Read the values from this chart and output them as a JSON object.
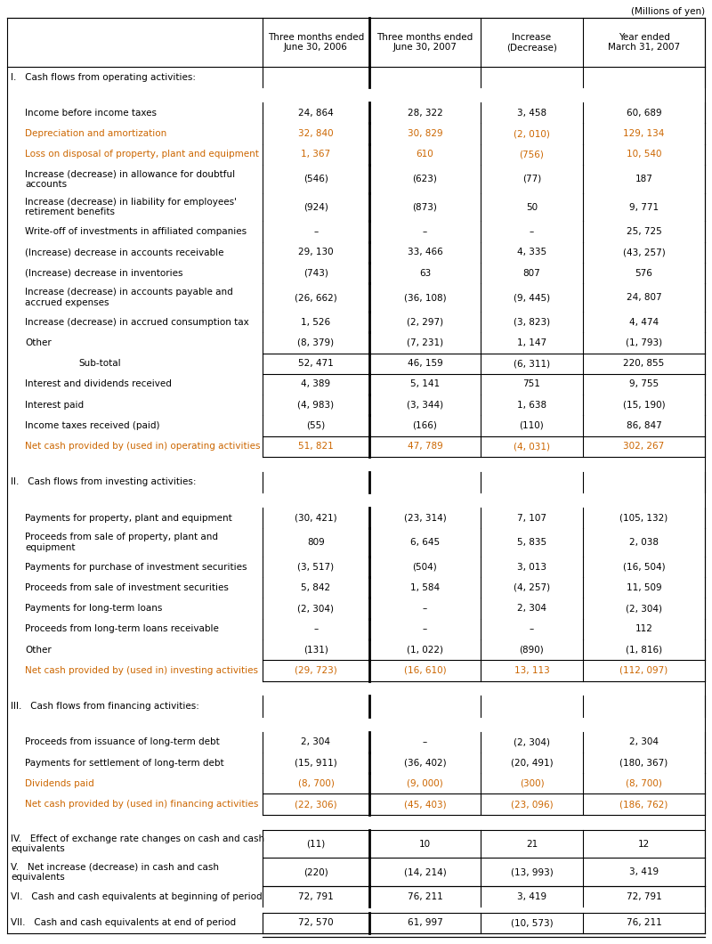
{
  "title_note": "(Millions of yen)",
  "col_headers": [
    "Three months ended\nJune 30, 2006",
    "Three months ended\nJune 30, 2007",
    "Increase\n(Decrease)",
    "Year ended\nMarch 31, 2007"
  ],
  "rows": [
    {
      "label": "I.   Cash flows from operating activities:",
      "vals": [
        "",
        "",
        "",
        ""
      ],
      "indent": 0,
      "style": "section",
      "orange": false
    },
    {
      "label": "",
      "vals": [
        "",
        "",
        "",
        ""
      ],
      "indent": 0,
      "style": "spacer",
      "orange": false
    },
    {
      "label": "Income before income taxes",
      "vals": [
        "24, 864",
        "28, 322",
        "3, 458",
        "60, 689"
      ],
      "indent": 1,
      "style": "normal",
      "orange": false
    },
    {
      "label": "Depreciation and amortization",
      "vals": [
        "32, 840",
        "30, 829",
        "(2, 010)",
        "129, 134"
      ],
      "indent": 1,
      "style": "normal",
      "orange": true
    },
    {
      "label": "Loss on disposal of property, plant and equipment",
      "vals": [
        "1, 367",
        "610",
        "(756)",
        "10, 540"
      ],
      "indent": 1,
      "style": "normal",
      "orange": true
    },
    {
      "label": "Increase (decrease) in allowance for doubtful\naccounts",
      "vals": [
        "(546)",
        "(623)",
        "(77)",
        "187"
      ],
      "indent": 1,
      "style": "normal2",
      "orange": false
    },
    {
      "label": "Increase (decrease) in liability for employees'\nretirement benefits",
      "vals": [
        "(924)",
        "(873)",
        "50",
        "9, 771"
      ],
      "indent": 1,
      "style": "normal2",
      "orange": false
    },
    {
      "label": "Write-off of investments in affiliated companies",
      "vals": [
        "–",
        "–",
        "–",
        "25, 725"
      ],
      "indent": 1,
      "style": "normal",
      "orange": false
    },
    {
      "label": "(Increase) decrease in accounts receivable",
      "vals": [
        "29, 130",
        "33, 466",
        "4, 335",
        "(43, 257)"
      ],
      "indent": 1,
      "style": "normal",
      "orange": false
    },
    {
      "label": "(Increase) decrease in inventories",
      "vals": [
        "(743)",
        "63",
        "807",
        "576"
      ],
      "indent": 1,
      "style": "normal",
      "orange": false
    },
    {
      "label": "Increase (decrease) in accounts payable and\naccrued expenses",
      "vals": [
        "(26, 662)",
        "(36, 108)",
        "(9, 445)",
        "24, 807"
      ],
      "indent": 1,
      "style": "normal2",
      "orange": false
    },
    {
      "label": "Increase (decrease) in accrued consumption tax",
      "vals": [
        "1, 526",
        "(2, 297)",
        "(3, 823)",
        "4, 474"
      ],
      "indent": 1,
      "style": "normal",
      "orange": false
    },
    {
      "label": "Other",
      "vals": [
        "(8, 379)",
        "(7, 231)",
        "1, 147",
        "(1, 793)"
      ],
      "indent": 1,
      "style": "normal",
      "orange": false
    },
    {
      "label": "Sub-total",
      "vals": [
        "52, 471",
        "46, 159",
        "(6, 311)",
        "220, 855"
      ],
      "indent": 2,
      "style": "subtotal",
      "orange": false
    },
    {
      "label": "Interest and dividends received",
      "vals": [
        "4, 389",
        "5, 141",
        "751",
        "9, 755"
      ],
      "indent": 1,
      "style": "normal",
      "orange": false
    },
    {
      "label": "Interest paid",
      "vals": [
        "(4, 983)",
        "(3, 344)",
        "1, 638",
        "(15, 190)"
      ],
      "indent": 1,
      "style": "normal",
      "orange": false
    },
    {
      "label": "Income taxes received (paid)",
      "vals": [
        "(55)",
        "(166)",
        "(110)",
        "86, 847"
      ],
      "indent": 1,
      "style": "normal",
      "orange": false
    },
    {
      "label": "Net cash provided by (used in) operating activities",
      "vals": [
        "51, 821",
        "47, 789",
        "(4, 031)",
        "302, 267"
      ],
      "indent": 1,
      "style": "total",
      "orange": true
    },
    {
      "label": "",
      "vals": [
        "",
        "",
        "",
        ""
      ],
      "indent": 0,
      "style": "spacer",
      "orange": false
    },
    {
      "label": "II.   Cash flows from investing activities:",
      "vals": [
        "",
        "",
        "",
        ""
      ],
      "indent": 0,
      "style": "section",
      "orange": false
    },
    {
      "label": "",
      "vals": [
        "",
        "",
        "",
        ""
      ],
      "indent": 0,
      "style": "spacer",
      "orange": false
    },
    {
      "label": "Payments for property, plant and equipment",
      "vals": [
        "(30, 421)",
        "(23, 314)",
        "7, 107",
        "(105, 132)"
      ],
      "indent": 1,
      "style": "normal",
      "orange": false
    },
    {
      "label": "Proceeds from sale of property, plant and\nequipment",
      "vals": [
        "809",
        "6, 645",
        "5, 835",
        "2, 038"
      ],
      "indent": 1,
      "style": "normal2",
      "orange": false
    },
    {
      "label": "Payments for purchase of investment securities",
      "vals": [
        "(3, 517)",
        "(504)",
        "3, 013",
        "(16, 504)"
      ],
      "indent": 1,
      "style": "normal",
      "orange": false
    },
    {
      "label": "Proceeds from sale of investment securities",
      "vals": [
        "5, 842",
        "1, 584",
        "(4, 257)",
        "11, 509"
      ],
      "indent": 1,
      "style": "normal",
      "orange": false
    },
    {
      "label": "Payments for long-term loans",
      "vals": [
        "(2, 304)",
        "–",
        "2, 304",
        "(2, 304)"
      ],
      "indent": 1,
      "style": "normal",
      "orange": false
    },
    {
      "label": "Proceeds from long-term loans receivable",
      "vals": [
        "–",
        "–",
        "–",
        "112"
      ],
      "indent": 1,
      "style": "normal",
      "orange": false
    },
    {
      "label": "Other",
      "vals": [
        "(131)",
        "(1, 022)",
        "(890)",
        "(1, 816)"
      ],
      "indent": 1,
      "style": "normal",
      "orange": false
    },
    {
      "label": "Net cash provided by (used in) investing activities",
      "vals": [
        "(29, 723)",
        "(16, 610)",
        "13, 113",
        "(112, 097)"
      ],
      "indent": 1,
      "style": "total",
      "orange": true
    },
    {
      "label": "",
      "vals": [
        "",
        "",
        "",
        ""
      ],
      "indent": 0,
      "style": "spacer",
      "orange": false
    },
    {
      "label": "III.   Cash flows from financing activities:",
      "vals": [
        "",
        "",
        "",
        ""
      ],
      "indent": 0,
      "style": "section",
      "orange": false
    },
    {
      "label": "",
      "vals": [
        "",
        "",
        "",
        ""
      ],
      "indent": 0,
      "style": "spacer",
      "orange": false
    },
    {
      "label": "Proceeds from issuance of long-term debt",
      "vals": [
        "2, 304",
        "–",
        "(2, 304)",
        "2, 304"
      ],
      "indent": 1,
      "style": "normal",
      "orange": false
    },
    {
      "label": "Payments for settlement of long-term debt",
      "vals": [
        "(15, 911)",
        "(36, 402)",
        "(20, 491)",
        "(180, 367)"
      ],
      "indent": 1,
      "style": "normal",
      "orange": false
    },
    {
      "label": "Dividends paid",
      "vals": [
        "(8, 700)",
        "(9, 000)",
        "(300)",
        "(8, 700)"
      ],
      "indent": 1,
      "style": "normal",
      "orange": true
    },
    {
      "label": "Net cash provided by (used in) financing activities",
      "vals": [
        "(22, 306)",
        "(45, 403)",
        "(23, 096)",
        "(186, 762)"
      ],
      "indent": 1,
      "style": "total",
      "orange": true
    },
    {
      "label": "",
      "vals": [
        "",
        "",
        "",
        ""
      ],
      "indent": 0,
      "style": "spacer",
      "orange": false
    },
    {
      "label": "IV.   Effect of exchange rate changes on cash and cash\nequivalents",
      "vals": [
        "(11)",
        "10",
        "21",
        "12"
      ],
      "indent": 0,
      "style": "roman2",
      "orange": false
    },
    {
      "label": "V.   Net increase (decrease) in cash and cash\nequivalents",
      "vals": [
        "(220)",
        "(14, 214)",
        "(13, 993)",
        "3, 419"
      ],
      "indent": 0,
      "style": "roman_total2",
      "orange": false
    },
    {
      "label": "VI.   Cash and cash equivalents at beginning of period",
      "vals": [
        "72, 791",
        "76, 211",
        "3, 419",
        "72, 791"
      ],
      "indent": 0,
      "style": "roman",
      "orange": false
    },
    {
      "label": "",
      "vals": [
        "",
        "",
        "",
        ""
      ],
      "indent": 0,
      "style": "spacer_small",
      "orange": false
    },
    {
      "label": "VII.   Cash and cash equivalents at end of period",
      "vals": [
        "72, 570",
        "61, 997",
        "(10, 573)",
        "76, 211"
      ],
      "indent": 0,
      "style": "roman_total",
      "orange": false
    }
  ],
  "orange_color": "#CC6600",
  "black_color": "#000000",
  "line_color": "#000000",
  "bg_color": "#ffffff",
  "note_fontsize": 7.5,
  "header_fontsize": 7.5,
  "body_fontsize": 7.5,
  "section_fontsize": 7.5
}
